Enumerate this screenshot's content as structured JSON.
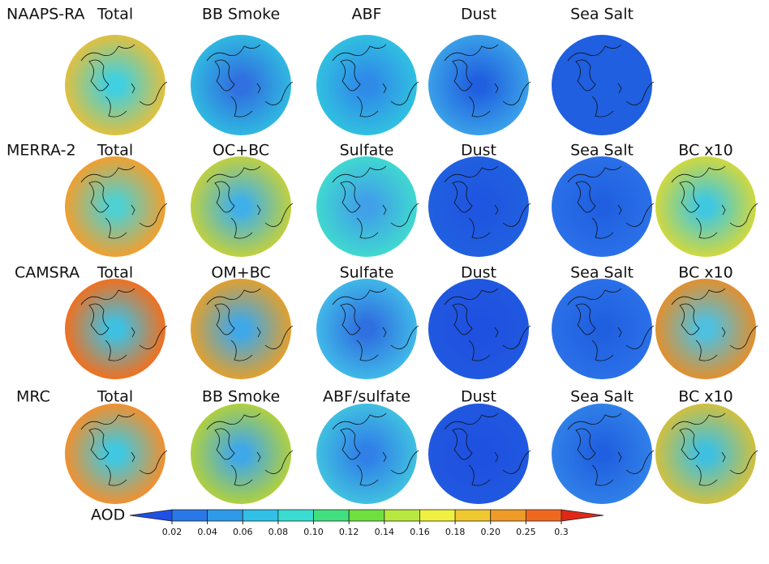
{
  "figure": {
    "rows": [
      {
        "model": "NAAPS-RA",
        "panels": [
          {
            "title": "Total",
            "inner": "#40d0e0",
            "outer": "#e0c040"
          },
          {
            "title": "BB Smoke",
            "inner": "#3070e0",
            "outer": "#30b8e0"
          },
          {
            "title": "ABF",
            "inner": "#2f8ae8",
            "outer": "#30c0e0"
          },
          {
            "title": "Dust",
            "inner": "#2060e0",
            "outer": "#3aa0e8"
          },
          {
            "title": "Sea Salt",
            "inner": "#1f5fe0",
            "outer": "#1f5fe0"
          }
        ]
      },
      {
        "model": "MERRA-2",
        "panels": [
          {
            "title": "Total",
            "inner": "#50d0d0",
            "outer": "#f0a030"
          },
          {
            "title": "OC+BC",
            "inner": "#40b0e8",
            "outer": "#c0d040"
          },
          {
            "title": "Sulfate",
            "inner": "#40a0e8",
            "outer": "#40d8d0"
          },
          {
            "title": "Dust",
            "inner": "#1f55e0",
            "outer": "#2060e0"
          },
          {
            "title": "Sea Salt",
            "inner": "#2060e0",
            "outer": "#2a70e8"
          },
          {
            "title": "BC x10",
            "inner": "#40c8e0",
            "outer": "#d0d840"
          }
        ]
      },
      {
        "model": "CAMSRA",
        "panels": [
          {
            "title": "Total",
            "inner": "#40c0e0",
            "outer": "#f07020"
          },
          {
            "title": "OM+BC",
            "inner": "#40a8e8",
            "outer": "#e0a030"
          },
          {
            "title": "Sulfate",
            "inner": "#2f70e0",
            "outer": "#40b8e8"
          },
          {
            "title": "Dust",
            "inner": "#1f50e0",
            "outer": "#2058e0"
          },
          {
            "title": "Sea Salt",
            "inner": "#2060e0",
            "outer": "#2a70e8"
          },
          {
            "title": "BC x10",
            "inner": "#50c0e0",
            "outer": "#e09030"
          }
        ]
      },
      {
        "model": "MRC",
        "panels": [
          {
            "title": "Total",
            "inner": "#40c8e0",
            "outer": "#f09030"
          },
          {
            "title": "BB Smoke",
            "inner": "#40a8e8",
            "outer": "#b0d040"
          },
          {
            "title": "ABF/sulfate",
            "inner": "#3080e8",
            "outer": "#40c0e0"
          },
          {
            "title": "Dust",
            "inner": "#1f50e0",
            "outer": "#2058e0"
          },
          {
            "title": "Sea Salt",
            "inner": "#2060e0",
            "outer": "#3080e8"
          },
          {
            "title": "BC x10",
            "inner": "#40c0e0",
            "outer": "#d0c040"
          }
        ]
      }
    ],
    "colorbar": {
      "label": "AOD",
      "ticks": [
        0.02,
        0.04,
        0.06,
        0.08,
        {
          "value": 0.1,
          "label": "0.10"
        },
        0.12,
        0.14,
        0.16,
        0.18,
        {
          "value": 0.2,
          "label": "0.20"
        },
        0.25,
        0.3
      ],
      "colors": [
        "#1e50e6",
        "#2878e8",
        "#2f9ae8",
        "#30c0e8",
        "#38dcd0",
        "#40e080",
        "#70e040",
        "#b8e840",
        "#f0f040",
        "#f0c830",
        "#f09a28",
        "#f06820",
        "#e02818"
      ]
    }
  }
}
